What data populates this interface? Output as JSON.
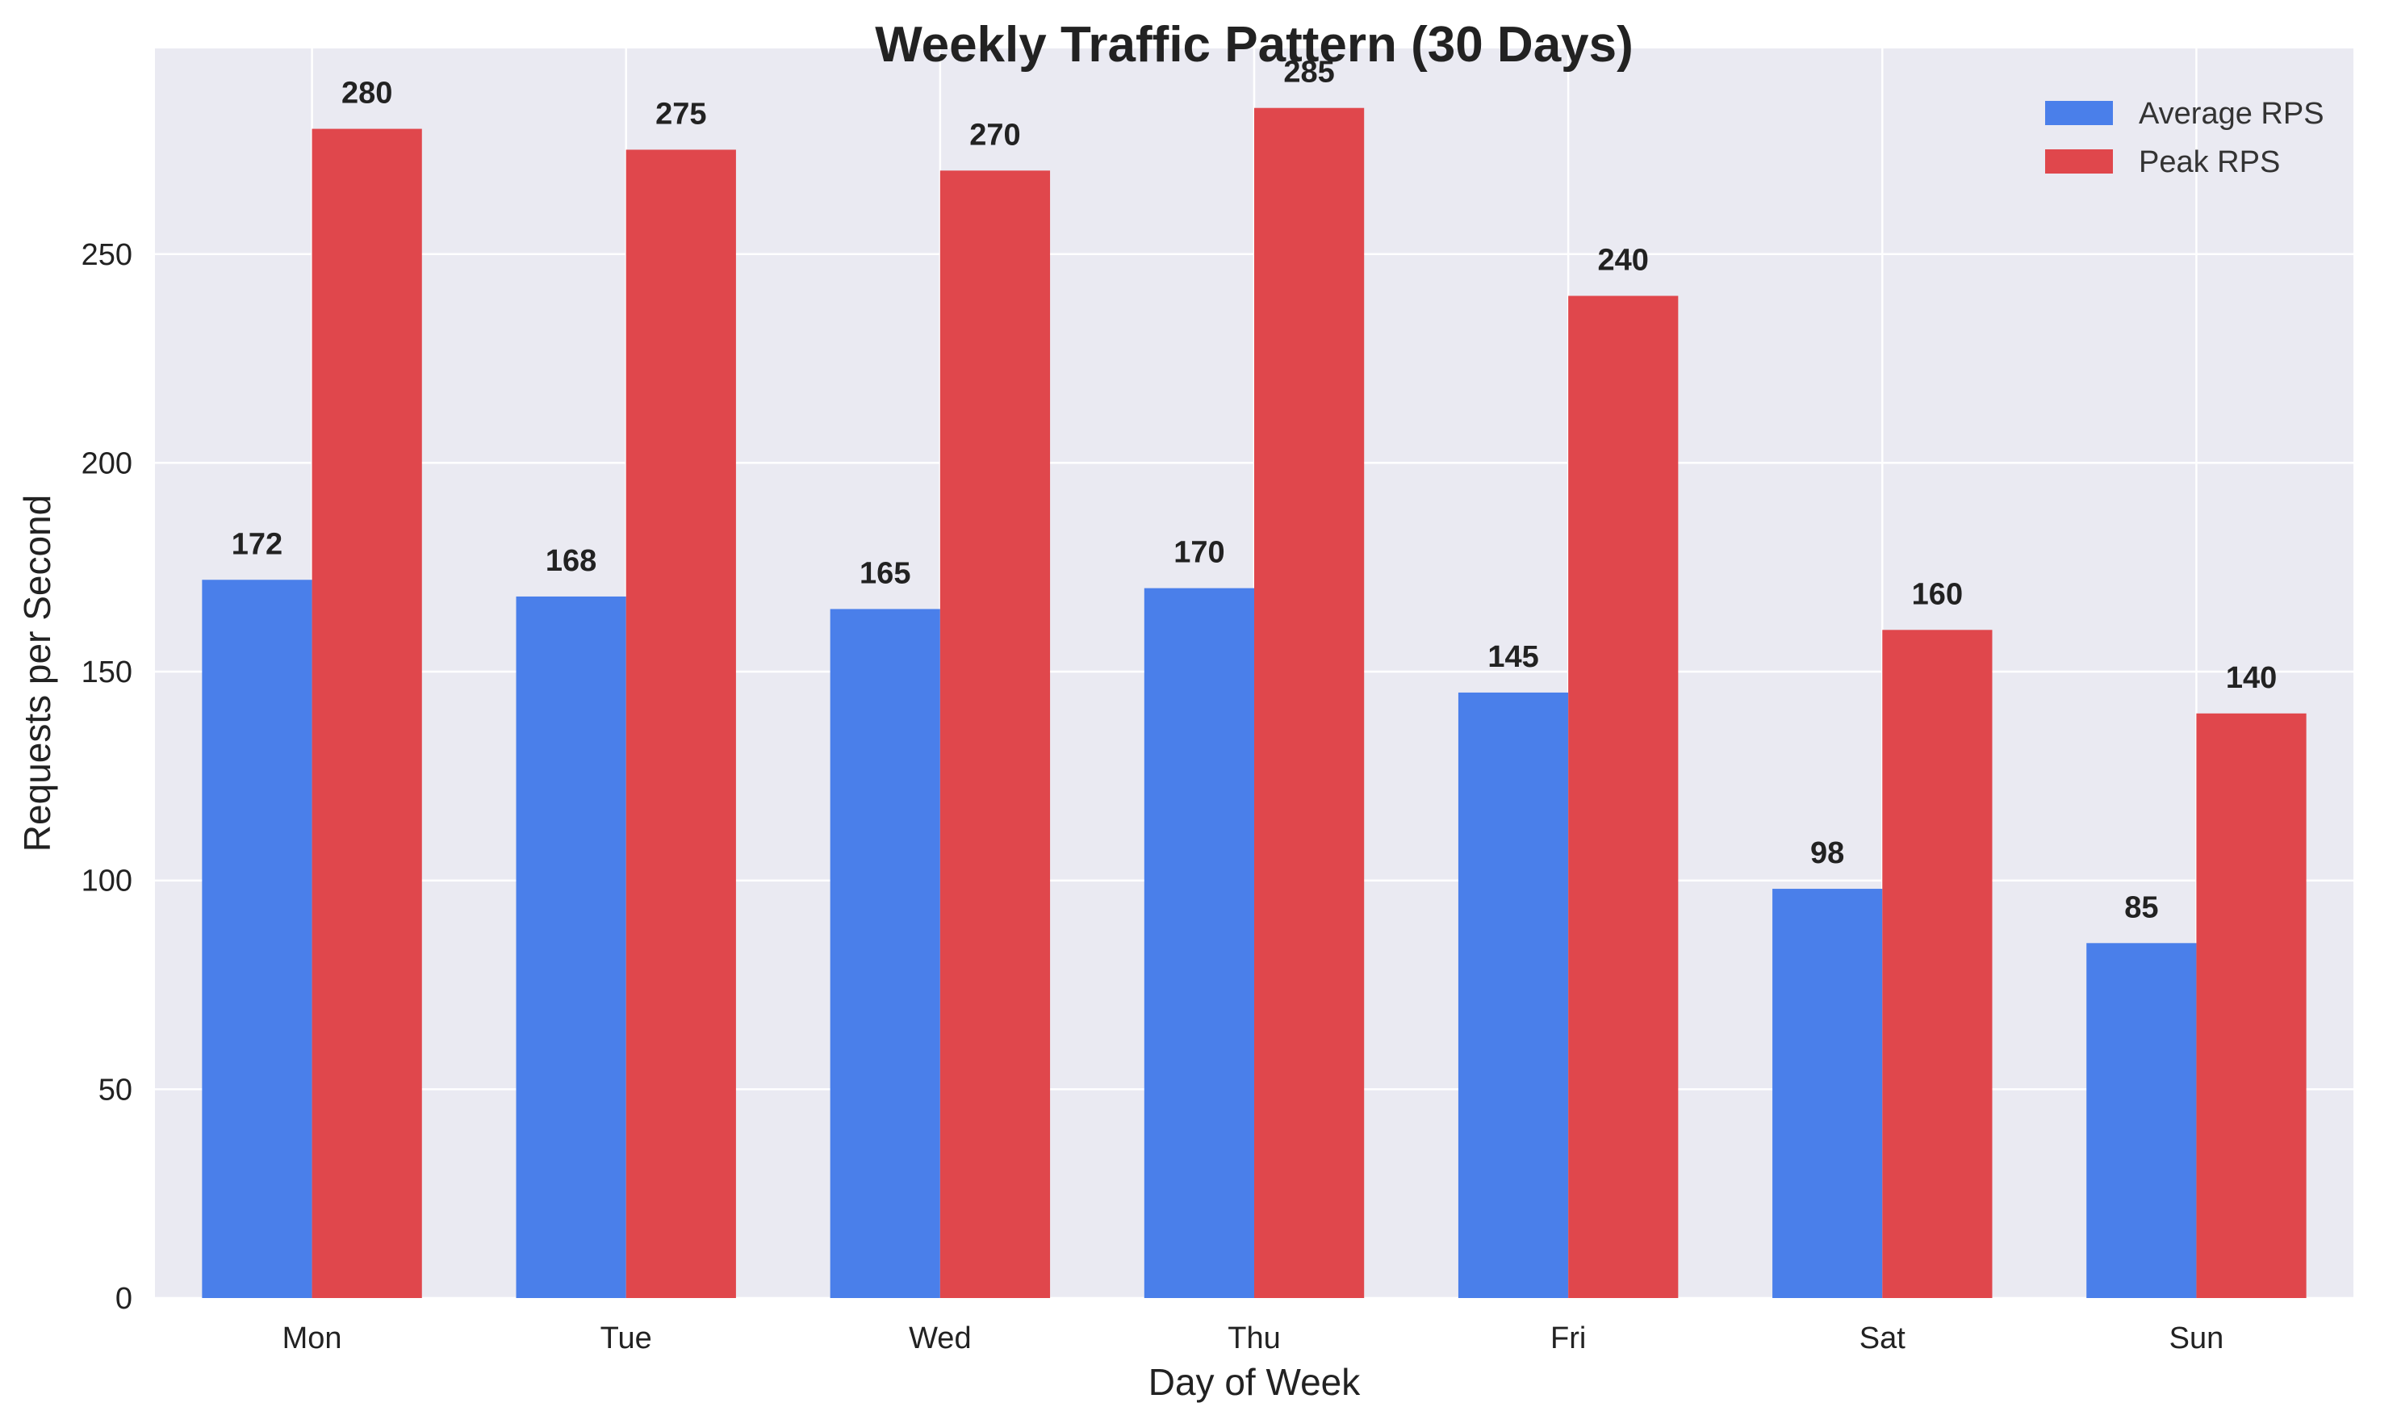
{
  "chart_data": {
    "type": "bar",
    "title": "Weekly Traffic Pattern (30 Days)",
    "xlabel": "Day of Week",
    "ylabel": "Requests per Second",
    "categories": [
      "Mon",
      "Tue",
      "Wed",
      "Thu",
      "Fri",
      "Sat",
      "Sun"
    ],
    "series": [
      {
        "name": "Average RPS",
        "color": "#4a7fea",
        "values": [
          172,
          168,
          165,
          170,
          145,
          98,
          85
        ]
      },
      {
        "name": "Peak RPS",
        "color": "#e0474c",
        "values": [
          280,
          275,
          270,
          285,
          240,
          160,
          140
        ]
      }
    ],
    "ylim": [
      0,
      299.25
    ],
    "yticks": [
      0,
      50,
      100,
      150,
      200,
      250
    ],
    "grid": true,
    "legend_position": "top-right",
    "background_color": "#eaeaf2"
  }
}
